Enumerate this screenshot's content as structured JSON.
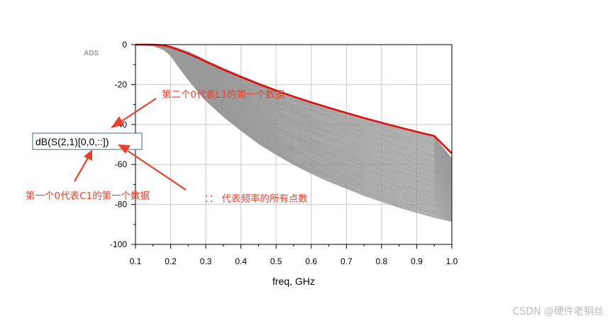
{
  "chart_data": {
    "type": "line",
    "vendor_tag": "ADS",
    "xlabel": "freq, GHz",
    "ylabel": "",
    "x_ticks": [
      0.1,
      0.2,
      0.3,
      0.4,
      0.5,
      0.6,
      0.7,
      0.8,
      0.9,
      1.0
    ],
    "x_tick_labels": [
      "0.1",
      "0.2",
      "0.3",
      "0.4",
      "0.5",
      "0.6",
      "0.7",
      "0.8",
      "0.9",
      "1.0"
    ],
    "y_ticks": [
      0,
      -20,
      -40,
      -60,
      -80,
      -100
    ],
    "y_tick_labels": [
      "0",
      "-20",
      "-40",
      "-60",
      "-80",
      "-100"
    ],
    "xlim": [
      0.1,
      1.0
    ],
    "ylim": [
      -100,
      0
    ],
    "grid": true,
    "expression": "dB(S(2,1)[0,0,::])",
    "highlight_series": {
      "color": "#dd1111",
      "x": [
        0.1,
        0.15,
        0.18,
        0.2,
        0.22,
        0.25,
        0.28,
        0.3,
        0.35,
        0.4,
        0.45,
        0.5,
        0.55,
        0.6,
        0.65,
        0.7,
        0.75,
        0.8,
        0.85,
        0.9,
        0.95,
        1.0
      ],
      "values": [
        0,
        0,
        -0.4,
        -1.2,
        -2.5,
        -4.5,
        -6.8,
        -8.5,
        -12.5,
        -16.2,
        -19.7,
        -23.0,
        -26.0,
        -28.9,
        -31.6,
        -34.2,
        -36.7,
        -39.1,
        -41.4,
        -43.6,
        -45.7,
        -54.5
      ]
    },
    "gray_family": {
      "color": "#9a9a9a",
      "count": 100,
      "x": [
        0.1,
        0.15,
        0.18,
        0.2,
        0.22,
        0.25,
        0.28,
        0.3,
        0.35,
        0.4,
        0.45,
        0.5,
        0.55,
        0.6,
        0.65,
        0.7,
        0.75,
        0.8,
        0.85,
        0.9,
        0.95,
        1.0
      ],
      "upper": [
        0,
        0,
        -0.3,
        -0.8,
        -1.8,
        -3.6,
        -6.0,
        -7.8,
        -11.8,
        -15.6,
        -19.2,
        -22.6,
        -25.8,
        -28.8,
        -31.6,
        -34.3,
        -36.9,
        -39.4,
        -41.8,
        -44.1,
        -46.3,
        -57.0
      ],
      "lower": [
        0,
        -0.5,
        -2.5,
        -5.5,
        -10.5,
        -17.5,
        -24.0,
        -28.0,
        -36.0,
        -43.0,
        -49.5,
        -55.0,
        -60.0,
        -64.5,
        -68.5,
        -72.0,
        -75.5,
        -78.5,
        -81.5,
        -84.0,
        -86.5,
        -88.5
      ]
    },
    "annotations": [
      {
        "text": "第二个0代表L1的第一个数据"
      },
      {
        "text": "第一个0代表C1的第一个数据"
      },
      {
        "text": "：：  代表频率的所有点数"
      }
    ]
  },
  "watermark": "CSDN @硬件老钢丝"
}
